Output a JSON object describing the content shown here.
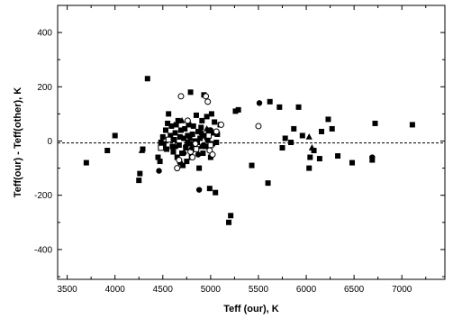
{
  "chart_data": {
    "type": "scatter",
    "title": "",
    "xlabel": "Teff (our), K",
    "ylabel": "Teff(our) - Teff(other), K",
    "xlim": [
      3400,
      7450
    ],
    "ylim": [
      -510,
      500
    ],
    "xticks": [
      3500,
      4000,
      4500,
      5000,
      5500,
      6000,
      6500,
      7000
    ],
    "yticks": [
      -400,
      -200,
      0,
      200,
      400
    ],
    "reference_line": {
      "y": -7,
      "style": "dashed"
    },
    "grid": false,
    "legend": "none",
    "series": [
      {
        "marker": "filled-square",
        "points": [
          [
            3700,
            -80
          ],
          [
            3920,
            -35
          ],
          [
            4000,
            20
          ],
          [
            4250,
            -145
          ],
          [
            4260,
            -120
          ],
          [
            4290,
            -30
          ],
          [
            4340,
            230
          ],
          [
            4450,
            -60
          ],
          [
            4470,
            -75
          ],
          [
            4480,
            -5
          ],
          [
            4500,
            15
          ],
          [
            4510,
            -10
          ],
          [
            4530,
            40
          ],
          [
            4540,
            -30
          ],
          [
            4550,
            65
          ],
          [
            4560,
            100
          ],
          [
            4580,
            20
          ],
          [
            4590,
            55
          ],
          [
            4600,
            -20
          ],
          [
            4610,
            -40
          ],
          [
            4620,
            5
          ],
          [
            4630,
            30
          ],
          [
            4640,
            60
          ],
          [
            4650,
            -60
          ],
          [
            4660,
            75
          ],
          [
            4670,
            -15
          ],
          [
            4680,
            15
          ],
          [
            4690,
            40
          ],
          [
            4700,
            -45
          ],
          [
            4710,
            -90
          ],
          [
            4720,
            10
          ],
          [
            4730,
            45
          ],
          [
            4740,
            -25
          ],
          [
            4750,
            -75
          ],
          [
            4760,
            20
          ],
          [
            4770,
            60
          ],
          [
            4780,
            -10
          ],
          [
            4790,
            180
          ],
          [
            4800,
            -60
          ],
          [
            4810,
            25
          ],
          [
            4820,
            55
          ],
          [
            4830,
            -30
          ],
          [
            4840,
            0
          ],
          [
            4850,
            95
          ],
          [
            4860,
            -5
          ],
          [
            4870,
            35
          ],
          [
            4880,
            -100
          ],
          [
            4890,
            10
          ],
          [
            4900,
            50
          ],
          [
            4910,
            75
          ],
          [
            4920,
            -45
          ],
          [
            4930,
            170
          ],
          [
            4940,
            20
          ],
          [
            4950,
            -20
          ],
          [
            4960,
            90
          ],
          [
            4970,
            5
          ],
          [
            4980,
            40
          ],
          [
            4990,
            -175
          ],
          [
            5000,
            -60
          ],
          [
            5010,
            100
          ],
          [
            5020,
            -10
          ],
          [
            5030,
            30
          ],
          [
            5040,
            70
          ],
          [
            5050,
            -190
          ],
          [
            5060,
            -5
          ],
          [
            5070,
            25
          ],
          [
            5100,
            60
          ],
          [
            5190,
            -300
          ],
          [
            5210,
            -275
          ],
          [
            5260,
            110
          ],
          [
            5290,
            115
          ],
          [
            5430,
            -90
          ],
          [
            5600,
            -155
          ],
          [
            5620,
            145
          ],
          [
            5720,
            125
          ],
          [
            5750,
            -25
          ],
          [
            5780,
            10
          ],
          [
            5840,
            -5
          ],
          [
            5870,
            45
          ],
          [
            5920,
            125
          ],
          [
            5960,
            20
          ],
          [
            6030,
            -100
          ],
          [
            6040,
            -60
          ],
          [
            6080,
            -35
          ],
          [
            6140,
            -65
          ],
          [
            6160,
            35
          ],
          [
            6230,
            80
          ],
          [
            6270,
            45
          ],
          [
            6330,
            -55
          ],
          [
            6480,
            -80
          ],
          [
            6690,
            -70
          ],
          [
            6720,
            65
          ],
          [
            7110,
            60
          ]
        ]
      },
      {
        "marker": "filled-circle",
        "points": [
          [
            4460,
            -110
          ],
          [
            4680,
            -80
          ],
          [
            4720,
            -45
          ],
          [
            4740,
            -20
          ],
          [
            4760,
            -5
          ],
          [
            4780,
            15
          ],
          [
            4800,
            -30
          ],
          [
            4830,
            -10
          ],
          [
            4870,
            -50
          ],
          [
            4880,
            -180
          ],
          [
            4900,
            30
          ],
          [
            4930,
            -15
          ],
          [
            4960,
            10
          ],
          [
            5000,
            40
          ],
          [
            5510,
            140
          ],
          [
            6690,
            -60
          ]
        ]
      },
      {
        "marker": "open-circle",
        "points": [
          [
            4650,
            -100
          ],
          [
            4670,
            -70
          ],
          [
            4690,
            165
          ],
          [
            4760,
            75
          ],
          [
            4790,
            -40
          ],
          [
            4810,
            -60
          ],
          [
            4840,
            -10
          ],
          [
            4950,
            165
          ],
          [
            4970,
            145
          ],
          [
            4990,
            -35
          ],
          [
            5020,
            -50
          ],
          [
            5060,
            35
          ],
          [
            5110,
            60
          ],
          [
            5500,
            55
          ]
        ]
      },
      {
        "marker": "filled-triangle",
        "points": [
          [
            4280,
            -35
          ],
          [
            4630,
            -20
          ],
          [
            4700,
            75
          ],
          [
            4790,
            10
          ],
          [
            4820,
            -25
          ],
          [
            4900,
            -20
          ],
          [
            4960,
            45
          ],
          [
            6030,
            15
          ],
          [
            6060,
            -25
          ]
        ]
      },
      {
        "marker": "open-square",
        "points": [
          [
            4480,
            -25
          ],
          [
            4560,
            5
          ],
          [
            4850,
            -30
          ],
          [
            4980,
            20
          ],
          [
            5000,
            -15
          ]
        ]
      }
    ]
  }
}
